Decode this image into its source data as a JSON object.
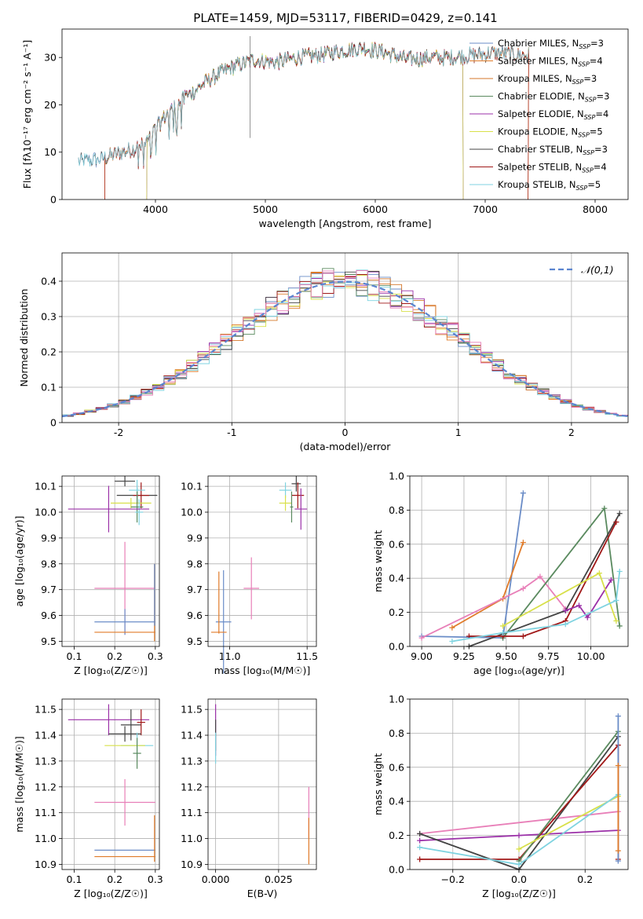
{
  "figure_title": "PLATE=1459, MJD=53117, FIBERID=0429, z=0.141",
  "chart_data": [
    {
      "id": "spectrum",
      "type": "line",
      "xlabel": "wavelength [Angstrom, rest frame]",
      "ylabel": "Flux [f$_\\lambda$10$^{-17}$ erg cm$^{-2}$ s$^{-1}$ A$^{-1}$]",
      "ylabel_display": "Flux [fλ10⁻¹⁷ erg cm⁻² s⁻¹ A⁻¹]",
      "xlim": [
        3150,
        8300
      ],
      "ylim": [
        0,
        36
      ],
      "xticks": [
        4000,
        5000,
        6000,
        7000,
        8000
      ],
      "yticks": [
        0,
        10,
        20,
        30
      ],
      "legend_position": "top-right",
      "continuum_knots": {
        "x": [
          3300,
          3500,
          3700,
          3900,
          4100,
          4300,
          4500,
          4700,
          4900,
          5100,
          5300,
          5500,
          5700,
          5900,
          6100,
          6300,
          6500,
          6700,
          6900,
          7100,
          7300
        ],
        "y": [
          8,
          8.5,
          10,
          11.5,
          18,
          22,
          25.5,
          28,
          29.5,
          29,
          30,
          30.5,
          31.5,
          32,
          31,
          29.5,
          30,
          30,
          30.5,
          31,
          30.5
        ]
      },
      "series": [
        {
          "name": "Chabrier MILES, N$_{SSP}$=3",
          "label": "Chabrier MILES, N",
          "sub": "SSP",
          "suffix": "=3",
          "color": "#6a8cc7",
          "xrange": [
            3300,
            7400
          ]
        },
        {
          "name": "Salpeter MILES, N$_{SSP}$=4",
          "label": "Salpeter MILES, N",
          "sub": "SSP",
          "suffix": "=4",
          "color": "#e07b2a",
          "xrange": [
            3540,
            7400
          ]
        },
        {
          "name": "Kroupa MILES, N$_{SSP}$=3",
          "label": "Kroupa MILES, N",
          "sub": "SSP",
          "suffix": "=3",
          "color": "#d4772a",
          "xrange": [
            3540,
            7400
          ]
        },
        {
          "name": "Chabrier ELODIE, N$_{SSP}$=3",
          "label": "Chabrier ELODIE, N",
          "sub": "SSP",
          "suffix": "=3",
          "color": "#5a8a5f",
          "xrange": [
            3920,
            6800
          ]
        },
        {
          "name": "Salpeter ELODIE, N$_{SSP}$=4",
          "label": "Salpeter ELODIE, N",
          "sub": "SSP",
          "suffix": "=4",
          "color": "#9b30a8",
          "xrange": [
            3920,
            6800
          ]
        },
        {
          "name": "Kroupa ELODIE, N$_{SSP}$=5",
          "label": "Kroupa ELODIE, N",
          "sub": "SSP",
          "suffix": "=5",
          "color": "#d8e04a",
          "xrange": [
            3920,
            6800
          ]
        },
        {
          "name": "Chabrier STELIB, N$_{SSP}$=3",
          "label": "Chabrier STELIB, N",
          "sub": "SSP",
          "suffix": "=3",
          "color": "#444444",
          "xrange": [
            3300,
            7400
          ]
        },
        {
          "name": "Salpeter STELIB, N$_{SSP}$=4",
          "label": "Salpeter STELIB, N",
          "sub": "SSP",
          "suffix": "=4",
          "color": "#a01818",
          "xrange": [
            3540,
            7400
          ]
        },
        {
          "name": "Kroupa STELIB, N$_{SSP}$=5",
          "label": "Kroupa STELIB, N",
          "sub": "SSP",
          "suffix": "=5",
          "color": "#7fd3e0",
          "xrange": [
            3300,
            7400
          ]
        }
      ]
    },
    {
      "id": "residuals",
      "type": "bar",
      "xlabel": "(data-model)/error",
      "ylabel": "Normed distribution",
      "xlim": [
        -2.5,
        2.5
      ],
      "ylim": [
        0,
        0.48
      ],
      "xticks": [
        -2,
        -1,
        0,
        1,
        2
      ],
      "yticks": [
        0.0,
        0.1,
        0.2,
        0.3,
        0.4
      ],
      "grid": true,
      "bin_width": 0.1,
      "legend_position": "top-right",
      "reference_curve": {
        "name": "$\\mathcal{N}(0,1)$",
        "label": "𝒩(0,1)",
        "color": "#5b85d0",
        "style": "dashed"
      },
      "series_colors": [
        "#6a8cc7",
        "#e07b2a",
        "#d4772a",
        "#5a8a5f",
        "#9b30a8",
        "#d8e04a",
        "#444444",
        "#a01818",
        "#7fd3e0",
        "#e87fb8"
      ]
    },
    {
      "id": "age-vs-Z",
      "type": "scatter",
      "xlabel": "Z [log$_{10}$(Z/Z$_\\odot$)]",
      "xlabel_display": "Z [log₁₀(Z/Z☉)]",
      "ylabel": "age  [log$_{10}$(age/yr)]",
      "ylabel_display": "age  [log₁₀(age/yr)]",
      "xlim": [
        0.07,
        0.31
      ],
      "ylim": [
        9.48,
        10.14
      ],
      "xticks": [
        0.1,
        0.2,
        0.3
      ],
      "xtick_labels": [
        "0.1",
        "0.2",
        "0.3"
      ],
      "yticks": [
        9.5,
        9.6,
        9.7,
        9.8,
        9.9,
        10.0,
        10.1
      ],
      "ytick_labels": [
        "9.5",
        "9.6",
        "9.7",
        "9.8",
        "9.9",
        "10.0",
        "10.1"
      ],
      "grid": true,
      "points": [
        {
          "x": 0.225,
          "y": 10.12,
          "xerr": 0.025,
          "yerr": 0.02,
          "color": "#444444"
        },
        {
          "x": 0.255,
          "y": 10.065,
          "xerr": 0.05,
          "yerr": 0.03,
          "color": "#444444"
        },
        {
          "x": 0.265,
          "y": 10.065,
          "xerr": 0.02,
          "yerr": 0.05,
          "color": "#a01818"
        },
        {
          "x": 0.255,
          "y": 10.085,
          "xerr": 0.02,
          "yerr": 0.04,
          "color": "#7fd3e0"
        },
        {
          "x": 0.24,
          "y": 10.035,
          "xerr": 0.05,
          "yerr": 0.02,
          "color": "#d8e04a"
        },
        {
          "x": 0.255,
          "y": 10.02,
          "xerr": 0.015,
          "yerr": 0.06,
          "color": "#5a8a5f"
        },
        {
          "x": 0.26,
          "y": 10.0,
          "xerr": 0.01,
          "yerr": 0.05,
          "color": "#7fd3e0"
        },
        {
          "x": 0.185,
          "y": 10.012,
          "xerr": 0.1,
          "yerr": 0.09,
          "color": "#9b30a8"
        },
        {
          "x": 0.225,
          "y": 9.705,
          "xerr": 0.075,
          "yerr": 0.18,
          "color": "#e87fb8"
        },
        {
          "x": 0.225,
          "y": 9.575,
          "xerr": 0.075,
          "yerr": 0.05,
          "color": "#6a8cc7"
        },
        {
          "x": 0.225,
          "y": 9.535,
          "xerr": 0.075,
          "yerr": 0.0,
          "color": "#e07b2a"
        },
        {
          "x": 0.298,
          "y": 9.65,
          "xerr": 0.0,
          "yerr": 0.15,
          "color": "#e07b2a"
        },
        {
          "x": 0.298,
          "y": 9.68,
          "xerr": 0.0,
          "yerr": 0.12,
          "color": "#6a8cc7"
        }
      ]
    },
    {
      "id": "age-vs-mass",
      "type": "scatter",
      "xlabel": "mass [log$_{10}$(M/M$_\\odot$)]",
      "xlabel_display": "mass [log₁₀(M/M☉)]",
      "ylabel": "",
      "xlim": [
        10.86,
        11.56
      ],
      "ylim": [
        9.48,
        10.14
      ],
      "xticks": [
        11.0,
        11.5
      ],
      "xtick_labels": [
        "11.0",
        "11.5"
      ],
      "yticks": [
        9.5,
        9.6,
        9.7,
        9.8,
        9.9,
        10.0,
        10.1
      ],
      "ytick_labels": [
        "9.5",
        "9.6",
        "9.7",
        "9.8",
        "9.9",
        "10.0",
        "10.1"
      ],
      "grid": true,
      "points": [
        {
          "x": 11.43,
          "y": 10.11,
          "xerr": 0.03,
          "yerr": 0.03,
          "color": "#444444"
        },
        {
          "x": 11.44,
          "y": 10.065,
          "xerr": 0.04,
          "yerr": 0.05,
          "color": "#a01818"
        },
        {
          "x": 11.36,
          "y": 10.085,
          "xerr": 0.04,
          "yerr": 0.03,
          "color": "#7fd3e0"
        },
        {
          "x": 11.36,
          "y": 10.035,
          "xerr": 0.04,
          "yerr": 0.03,
          "color": "#d8e04a"
        },
        {
          "x": 11.4,
          "y": 10.02,
          "xerr": 0.01,
          "yerr": 0.06,
          "color": "#5a8a5f"
        },
        {
          "x": 11.46,
          "y": 10.012,
          "xerr": 0.04,
          "yerr": 0.08,
          "color": "#9b30a8"
        },
        {
          "x": 11.14,
          "y": 9.705,
          "xerr": 0.05,
          "yerr": 0.12,
          "color": "#e87fb8"
        },
        {
          "x": 10.96,
          "y": 9.575,
          "xerr": 0.05,
          "yerr": 0.2,
          "color": "#6a8cc7"
        },
        {
          "x": 10.93,
          "y": 9.535,
          "xerr": 0.05,
          "yerr": 0.0,
          "color": "#e07b2a"
        },
        {
          "x": 10.93,
          "y": 9.65,
          "xerr": 0.0,
          "yerr": 0.12,
          "color": "#e07b2a"
        }
      ]
    },
    {
      "id": "weight-vs-age",
      "type": "line",
      "xlabel": "age  [log$_{10}$(age/yr)]",
      "xlabel_display": "age  [log₁₀(age/yr)]",
      "ylabel": "mass weight",
      "xlim": [
        8.93,
        10.22
      ],
      "ylim": [
        0,
        1.0
      ],
      "xticks": [
        9.0,
        9.25,
        9.5,
        9.75,
        10.0
      ],
      "xtick_labels": [
        "9.00",
        "9.25",
        "9.50",
        "9.75",
        "10.00"
      ],
      "yticks": [
        0.0,
        0.2,
        0.4,
        0.6,
        0.8,
        1.0
      ],
      "ytick_labels": [
        "0.0",
        "0.2",
        "0.4",
        "0.6",
        "0.8",
        "1.0"
      ],
      "grid": true,
      "series": [
        {
          "color": "#6a8cc7",
          "x": [
            9.0,
            9.48,
            9.6
          ],
          "y": [
            0.06,
            0.05,
            0.9
          ]
        },
        {
          "color": "#e07b2a",
          "x": [
            9.18,
            9.48,
            9.6
          ],
          "y": [
            0.11,
            0.28,
            0.61
          ]
        },
        {
          "color": "#e87fb8",
          "x": [
            9.0,
            9.6,
            9.7,
            9.85
          ],
          "y": [
            0.05,
            0.34,
            0.41,
            0.22
          ]
        },
        {
          "color": "#5a8a5f",
          "x": [
            9.48,
            10.08,
            10.17
          ],
          "y": [
            0.05,
            0.81,
            0.12
          ]
        },
        {
          "color": "#444444",
          "x": [
            9.28,
            9.85,
            10.17
          ],
          "y": [
            0.0,
            0.21,
            0.78
          ]
        },
        {
          "color": "#a01818",
          "x": [
            9.28,
            9.48,
            9.6,
            9.85,
            10.15
          ],
          "y": [
            0.06,
            0.06,
            0.06,
            0.15,
            0.73
          ]
        },
        {
          "color": "#9b30a8",
          "x": [
            9.85,
            9.93,
            9.98,
            10.12
          ],
          "y": [
            0.21,
            0.24,
            0.17,
            0.39
          ]
        },
        {
          "color": "#d8e04a",
          "x": [
            9.48,
            10.05,
            10.15
          ],
          "y": [
            0.12,
            0.43,
            0.15
          ]
        },
        {
          "color": "#7fd3e0",
          "x": [
            9.18,
            9.48,
            9.85,
            10.15,
            10.17
          ],
          "y": [
            0.03,
            0.08,
            0.13,
            0.27,
            0.44
          ]
        }
      ]
    },
    {
      "id": "mass-vs-Z",
      "type": "scatter",
      "xlabel": "Z [log$_{10}$(Z/Z$_\\odot$)]",
      "xlabel_display": "Z [log₁₀(Z/Z☉)]",
      "ylabel": "mass [log$_{10}$(M/M$_\\odot$)]",
      "ylabel_display": "mass [log₁₀(M/M☉)]",
      "xlim": [
        0.07,
        0.31
      ],
      "ylim": [
        10.88,
        11.54
      ],
      "xticks": [
        0.1,
        0.2,
        0.3
      ],
      "xtick_labels": [
        "0.1",
        "0.2",
        "0.3"
      ],
      "yticks": [
        10.9,
        11.0,
        11.1,
        11.2,
        11.3,
        11.4,
        11.5
      ],
      "ytick_labels": [
        "10.9",
        "11.0",
        "11.1",
        "11.2",
        "11.3",
        "11.4",
        "11.5"
      ],
      "grid": true,
      "points": [
        {
          "x": 0.185,
          "y": 11.46,
          "xerr": 0.1,
          "yerr": 0.06,
          "color": "#9b30a8"
        },
        {
          "x": 0.24,
          "y": 11.44,
          "xerr": 0.025,
          "yerr": 0.06,
          "color": "#444444"
        },
        {
          "x": 0.265,
          "y": 11.45,
          "xerr": 0.01,
          "yerr": 0.05,
          "color": "#a01818"
        },
        {
          "x": 0.225,
          "y": 11.405,
          "xerr": 0.04,
          "yerr": 0.03,
          "color": "#444444"
        },
        {
          "x": 0.255,
          "y": 11.36,
          "xerr": 0.04,
          "yerr": 0.05,
          "color": "#7fd3e0"
        },
        {
          "x": 0.225,
          "y": 11.36,
          "xerr": 0.05,
          "yerr": 0.0,
          "color": "#d8e04a"
        },
        {
          "x": 0.255,
          "y": 11.33,
          "xerr": 0.01,
          "yerr": 0.06,
          "color": "#5a8a5f"
        },
        {
          "x": 0.225,
          "y": 11.14,
          "xerr": 0.075,
          "yerr": 0.09,
          "color": "#e87fb8"
        },
        {
          "x": 0.225,
          "y": 10.955,
          "xerr": 0.075,
          "yerr": 0.0,
          "color": "#6a8cc7"
        },
        {
          "x": 0.225,
          "y": 10.93,
          "xerr": 0.075,
          "yerr": 0.0,
          "color": "#e07b2a"
        },
        {
          "x": 0.298,
          "y": 11.0,
          "xerr": 0.0,
          "yerr": 0.09,
          "color": "#e07b2a"
        }
      ]
    },
    {
      "id": "mass-vs-ebv",
      "type": "scatter",
      "xlabel": "E(B-V)",
      "ylabel": "",
      "xlim": [
        -0.003,
        0.04
      ],
      "ylim": [
        10.88,
        11.54
      ],
      "xticks": [
        0.0,
        0.025
      ],
      "xtick_labels": [
        "0.000",
        "0.025"
      ],
      "yticks": [
        10.9,
        11.0,
        11.1,
        11.2,
        11.3,
        11.4,
        11.5
      ],
      "ytick_labels": [
        "10.9",
        "11.0",
        "11.1",
        "11.2",
        "11.3",
        "11.4",
        "11.5"
      ],
      "grid": true,
      "points": [
        {
          "x": 0.0,
          "y": 11.42,
          "xerr": 0.0,
          "yerr": 0.1,
          "color": "#9b30a8"
        },
        {
          "x": 0.0,
          "y": 11.4,
          "xerr": 0.0,
          "yerr": 0.06,
          "color": "#444444"
        },
        {
          "x": 0.0,
          "y": 11.35,
          "xerr": 0.0,
          "yerr": 0.06,
          "color": "#7fd3e0"
        },
        {
          "x": 0.037,
          "y": 11.1,
          "xerr": 0.0,
          "yerr": 0.1,
          "color": "#e87fb8"
        },
        {
          "x": 0.037,
          "y": 10.99,
          "xerr": 0.0,
          "yerr": 0.09,
          "color": "#e07b2a"
        }
      ]
    },
    {
      "id": "weight-vs-Z",
      "type": "line",
      "xlabel": "Z [log$_{10}$(Z/Z$_\\odot$)]",
      "xlabel_display": "Z [log₁₀(Z/Z☉)]",
      "ylabel": "mass weight",
      "xlim": [
        -0.33,
        0.33
      ],
      "ylim": [
        0,
        1.0
      ],
      "xticks": [
        -0.2,
        0.0,
        0.2
      ],
      "xtick_labels": [
        "−0.2",
        "0.0",
        "0.2"
      ],
      "yticks": [
        0.0,
        0.2,
        0.4,
        0.6,
        0.8,
        1.0
      ],
      "ytick_labels": [
        "0.0",
        "0.2",
        "0.4",
        "0.6",
        "0.8",
        "1.0"
      ],
      "grid": true,
      "series": [
        {
          "color": "#e87fb8",
          "x": [
            -0.3,
            0.3
          ],
          "y": [
            0.21,
            0.34
          ]
        },
        {
          "color": "#9b30a8",
          "x": [
            -0.3,
            0.0,
            0.3
          ],
          "y": [
            0.17,
            0.2,
            0.23
          ]
        },
        {
          "color": "#444444",
          "x": [
            -0.3,
            0.0,
            0.3
          ],
          "y": [
            0.21,
            0.0,
            0.78
          ]
        },
        {
          "color": "#a01818",
          "x": [
            -0.3,
            0.0,
            0.3,
            0.3
          ],
          "y": [
            0.06,
            0.06,
            0.73,
            0.06
          ]
        },
        {
          "color": "#5a8a5f",
          "x": [
            0.0,
            0.3
          ],
          "y": [
            0.05,
            0.81
          ]
        },
        {
          "color": "#d8e04a",
          "x": [
            0.0,
            0.3
          ],
          "y": [
            0.12,
            0.43
          ]
        },
        {
          "color": "#7fd3e0",
          "x": [
            -0.3,
            0.0,
            0.3
          ],
          "y": [
            0.13,
            0.03,
            0.44
          ]
        },
        {
          "color": "#6a8cc7",
          "x": [
            0.3,
            0.3
          ],
          "y": [
            0.05,
            0.9
          ]
        },
        {
          "color": "#e07b2a",
          "x": [
            0.3,
            0.3
          ],
          "y": [
            0.11,
            0.61
          ]
        }
      ]
    }
  ]
}
